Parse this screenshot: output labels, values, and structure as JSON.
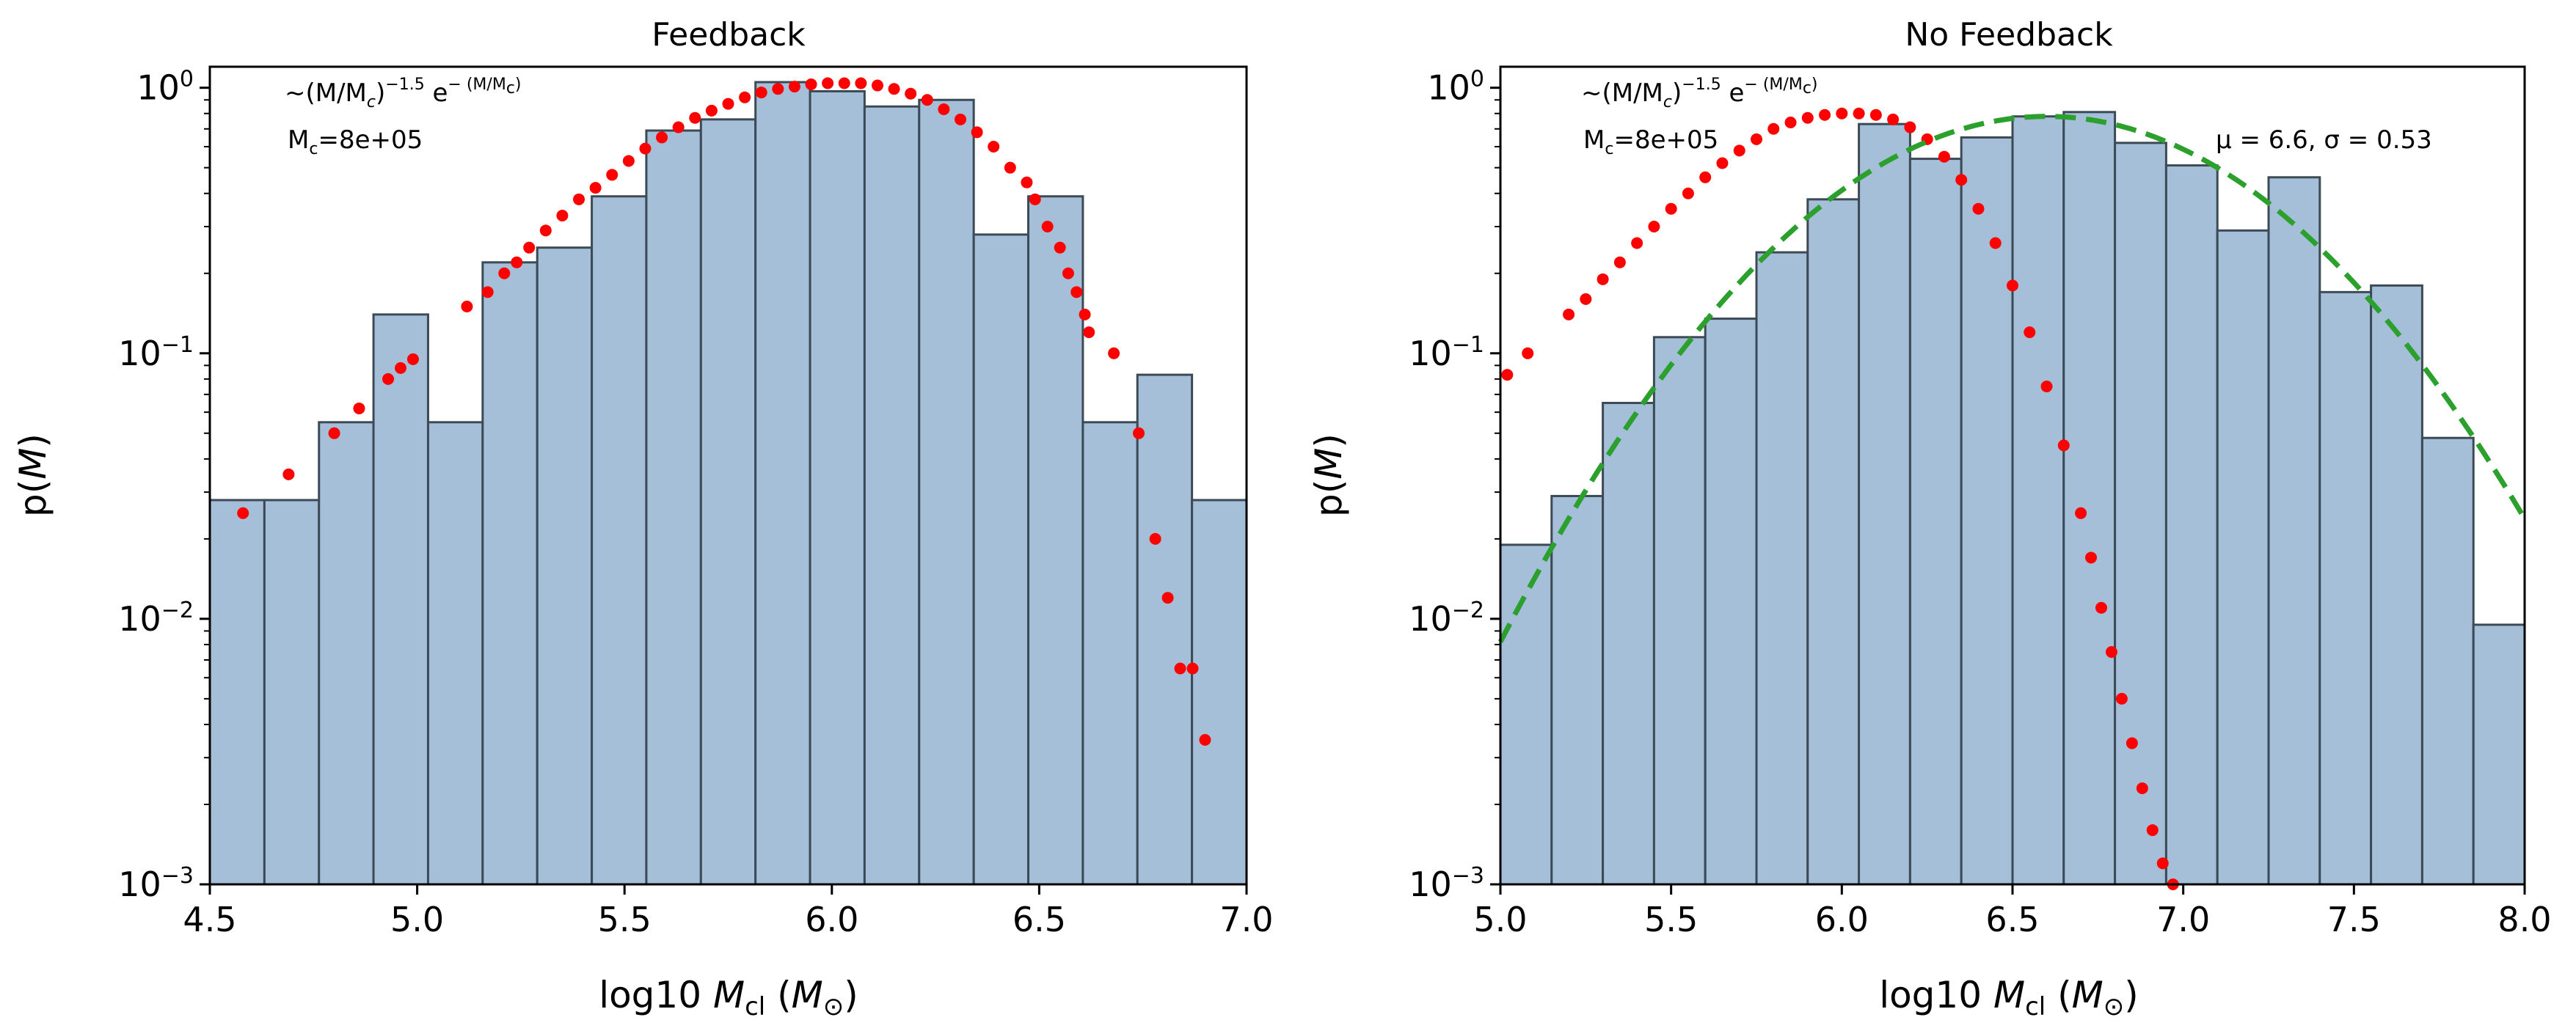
{
  "chart_data": [
    {
      "type": "bar",
      "title": "Feedback",
      "xlabel_prefix": "log10 ",
      "xlabel_var": "M",
      "xlabel_sub": "cl",
      "xlabel_unit_open": " (",
      "xlabel_unit_var": "M",
      "xlabel_unit_sub": "⊙",
      "xlabel_unit_close": ")",
      "ylabel_prefix": "p(",
      "ylabel_var": "M",
      "ylabel_suffix": ")",
      "xlim": [
        4.5,
        7.0
      ],
      "ylim": [
        0.001,
        1.2
      ],
      "yscale": "log",
      "xticks": [
        "4.5",
        "5.0",
        "5.5",
        "6.0",
        "6.5",
        "7.0"
      ],
      "xtick_values": [
        4.5,
        5.0,
        5.5,
        6.0,
        6.5,
        7.0
      ],
      "yticks": [
        {
          "base": "10",
          "exp": "−3",
          "value": 0.001
        },
        {
          "base": "10",
          "exp": "−2",
          "value": 0.01
        },
        {
          "base": "10",
          "exp": "−1",
          "value": 0.1
        },
        {
          "base": "10",
          "exp": "0",
          "value": 1
        }
      ],
      "histogram": {
        "edges": [
          4.5,
          4.6316,
          4.7632,
          4.8947,
          5.0263,
          5.1579,
          5.2895,
          5.4211,
          5.5526,
          5.6842,
          5.8158,
          5.9474,
          6.0789,
          6.2105,
          6.3421,
          6.4737,
          6.6053,
          6.7368,
          6.8684,
          7.0
        ],
        "values": [
          0.028,
          0.028,
          0.055,
          0.14,
          0.055,
          0.22,
          0.25,
          0.39,
          0.69,
          0.76,
          1.05,
          0.97,
          0.85,
          0.9,
          0.28,
          0.39,
          0.055,
          0.083,
          0.028
        ]
      },
      "model_points": {
        "x": [
          4.58,
          4.69,
          4.8,
          4.86,
          4.93,
          4.96,
          4.99,
          5.12,
          5.17,
          5.21,
          5.24,
          5.27,
          5.31,
          5.35,
          5.39,
          5.43,
          5.47,
          5.51,
          5.55,
          5.59,
          5.63,
          5.67,
          5.71,
          5.75,
          5.79,
          5.83,
          5.87,
          5.91,
          5.95,
          5.99,
          6.03,
          6.07,
          6.11,
          6.15,
          6.19,
          6.23,
          6.27,
          6.31,
          6.35,
          6.39,
          6.43,
          6.47,
          6.49,
          6.52,
          6.55,
          6.57,
          6.59,
          6.61,
          6.62,
          6.68,
          6.74,
          6.78,
          6.81,
          6.84,
          6.87,
          6.9
        ],
        "y": [
          0.025,
          0.035,
          0.05,
          0.062,
          0.08,
          0.088,
          0.095,
          0.15,
          0.17,
          0.2,
          0.22,
          0.25,
          0.29,
          0.33,
          0.38,
          0.42,
          0.47,
          0.53,
          0.59,
          0.65,
          0.71,
          0.77,
          0.82,
          0.87,
          0.92,
          0.96,
          0.99,
          1.01,
          1.03,
          1.04,
          1.04,
          1.04,
          1.02,
          0.99,
          0.95,
          0.9,
          0.83,
          0.76,
          0.68,
          0.6,
          0.5,
          0.44,
          0.38,
          0.3,
          0.25,
          0.2,
          0.17,
          0.14,
          0.12,
          0.1,
          0.05,
          0.02,
          0.012,
          0.0065,
          0.0065,
          0.0035
        ]
      },
      "annotation_formula": {
        "prefix": "~(M/M",
        "sub": "c",
        "close": ")",
        "exp1": "−1.5",
        "e": " e",
        "exp2": "− (M/M",
        "exp2_sub": "c",
        "exp2_close": ")"
      },
      "annotation_mc": {
        "label": "M",
        "sub": "c",
        "value": "=8e+05"
      },
      "colors": {
        "bar_fill": "#a5bfd9",
        "bar_edge": "#3c4a56",
        "model": "#ff0000"
      }
    },
    {
      "type": "bar",
      "title": "No Feedback",
      "xlabel_prefix": "log10 ",
      "xlabel_var": "M",
      "xlabel_sub": "cl",
      "xlabel_unit_open": " (",
      "xlabel_unit_var": "M",
      "xlabel_unit_sub": "⊙",
      "xlabel_unit_close": ")",
      "ylabel_prefix": "p(",
      "ylabel_var": "M",
      "ylabel_suffix": ")",
      "xlim": [
        5.0,
        8.0
      ],
      "ylim": [
        0.001,
        1.2
      ],
      "yscale": "log",
      "xticks": [
        "5.0",
        "5.5",
        "6.0",
        "6.5",
        "7.0",
        "7.5",
        "8.0"
      ],
      "xtick_values": [
        5.0,
        5.5,
        6.0,
        6.5,
        7.0,
        7.5,
        8.0
      ],
      "yticks": [
        {
          "base": "10",
          "exp": "−3",
          "value": 0.001
        },
        {
          "base": "10",
          "exp": "−2",
          "value": 0.01
        },
        {
          "base": "10",
          "exp": "−1",
          "value": 0.1
        },
        {
          "base": "10",
          "exp": "0",
          "value": 1
        }
      ],
      "histogram": {
        "edges": [
          5.0,
          5.15,
          5.3,
          5.45,
          5.6,
          5.75,
          5.9,
          6.05,
          6.2,
          6.35,
          6.5,
          6.65,
          6.8,
          6.95,
          7.1,
          7.25,
          7.4,
          7.55,
          7.7,
          7.85,
          8.0
        ],
        "values": [
          0.019,
          0.029,
          0.065,
          0.115,
          0.135,
          0.24,
          0.38,
          0.73,
          0.54,
          0.65,
          0.78,
          0.81,
          0.62,
          0.51,
          0.29,
          0.46,
          0.17,
          0.18,
          0.048,
          0.0095
        ]
      },
      "model_points": {
        "x": [
          5.02,
          5.08,
          5.2,
          5.25,
          5.3,
          5.35,
          5.4,
          5.45,
          5.5,
          5.55,
          5.6,
          5.65,
          5.7,
          5.75,
          5.8,
          5.85,
          5.9,
          5.95,
          6.0,
          6.05,
          6.1,
          6.15,
          6.2,
          6.25,
          6.3,
          6.35,
          6.4,
          6.45,
          6.5,
          6.55,
          6.6,
          6.65,
          6.7,
          6.73,
          6.76,
          6.79,
          6.82,
          6.85,
          6.88,
          6.91,
          6.94,
          6.97
        ],
        "y": [
          0.083,
          0.1,
          0.14,
          0.16,
          0.19,
          0.22,
          0.26,
          0.3,
          0.35,
          0.4,
          0.46,
          0.52,
          0.58,
          0.64,
          0.7,
          0.74,
          0.77,
          0.79,
          0.8,
          0.8,
          0.79,
          0.76,
          0.71,
          0.64,
          0.55,
          0.45,
          0.35,
          0.26,
          0.18,
          0.12,
          0.075,
          0.045,
          0.025,
          0.017,
          0.011,
          0.0075,
          0.005,
          0.0034,
          0.0023,
          0.0016,
          0.0012,
          0.001
        ]
      },
      "lognormal_fit": {
        "mu": 6.6,
        "sigma": 0.53,
        "peak": 0.78,
        "label": "μ = 6.6, σ = 0.53"
      },
      "annotation_formula": {
        "prefix": "~(M/M",
        "sub": "c",
        "close": ")",
        "exp1": "−1.5",
        "e": " e",
        "exp2": "− (M/M",
        "exp2_sub": "c",
        "exp2_close": ")"
      },
      "annotation_mc": {
        "label": "M",
        "sub": "c",
        "value": "=8e+05"
      },
      "colors": {
        "bar_fill": "#a5bfd9",
        "bar_edge": "#3c4a56",
        "model": "#ff0000",
        "fit": "#2ca02c"
      }
    }
  ]
}
